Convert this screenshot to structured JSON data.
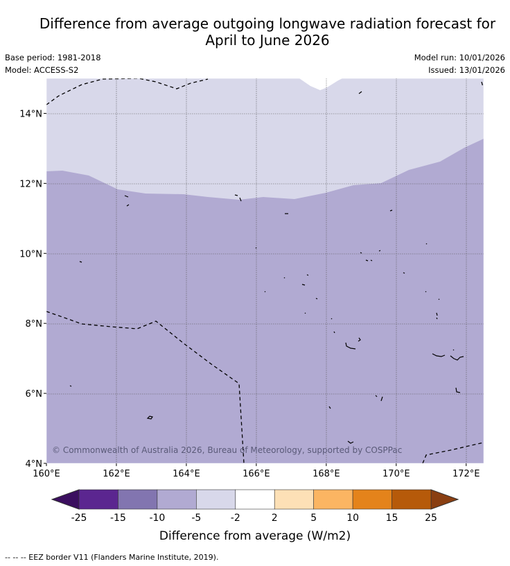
{
  "title_line1": "Difference from average outgoing longwave radiation forecast for",
  "title_line2": "April to June 2026",
  "base_period": "Base period: 1981-2018",
  "model": "Model: ACCESS-S2",
  "model_run": "Model run: 10/01/2026",
  "issued": "Issued: 13/01/2026",
  "copyright": "© Commonwealth of Australia 2026, Bureau of Meteorology, supported by COSPPac",
  "map": {
    "lon_range": [
      160,
      172.5
    ],
    "lat_range": [
      4,
      15
    ],
    "lon_ticks": [
      {
        "value": 160,
        "label": "160°E"
      },
      {
        "value": 162,
        "label": "162°E"
      },
      {
        "value": 164,
        "label": "164°E"
      },
      {
        "value": 166,
        "label": "166°E"
      },
      {
        "value": 168,
        "label": "168°E"
      },
      {
        "value": 170,
        "label": "170°E"
      },
      {
        "value": 172,
        "label": "172°E"
      }
    ],
    "lat_ticks": [
      {
        "value": 4,
        "label": "4°N"
      },
      {
        "value": 6,
        "label": "6°N"
      },
      {
        "value": 8,
        "label": "8°N"
      },
      {
        "value": 10,
        "label": "10°N"
      },
      {
        "value": 12,
        "label": "12°N"
      },
      {
        "value": 14,
        "label": "14°N"
      }
    ],
    "colors": {
      "band_-5_-2": "#d8d8ea",
      "band_-10_-5": "#b1aad2",
      "band_-2_2": "#ffffff"
    }
  },
  "colorbar": {
    "title": "Difference from average (W/m2)",
    "labels": [
      "-25",
      "-15",
      "-10",
      "-5",
      "-2",
      "2",
      "5",
      "10",
      "15",
      "25"
    ],
    "under_color": "#3b0f5f",
    "over_color": "#8a3f12",
    "colors": [
      "#5b2690",
      "#8275b0",
      "#b1aad2",
      "#d8d8ea",
      "#ffffff",
      "#fde0b6",
      "#fbb562",
      "#e4831b",
      "#b65a0a"
    ]
  },
  "footer": "-- -- -- EEZ border V11 (Flanders Marine Institute, 2019)."
}
